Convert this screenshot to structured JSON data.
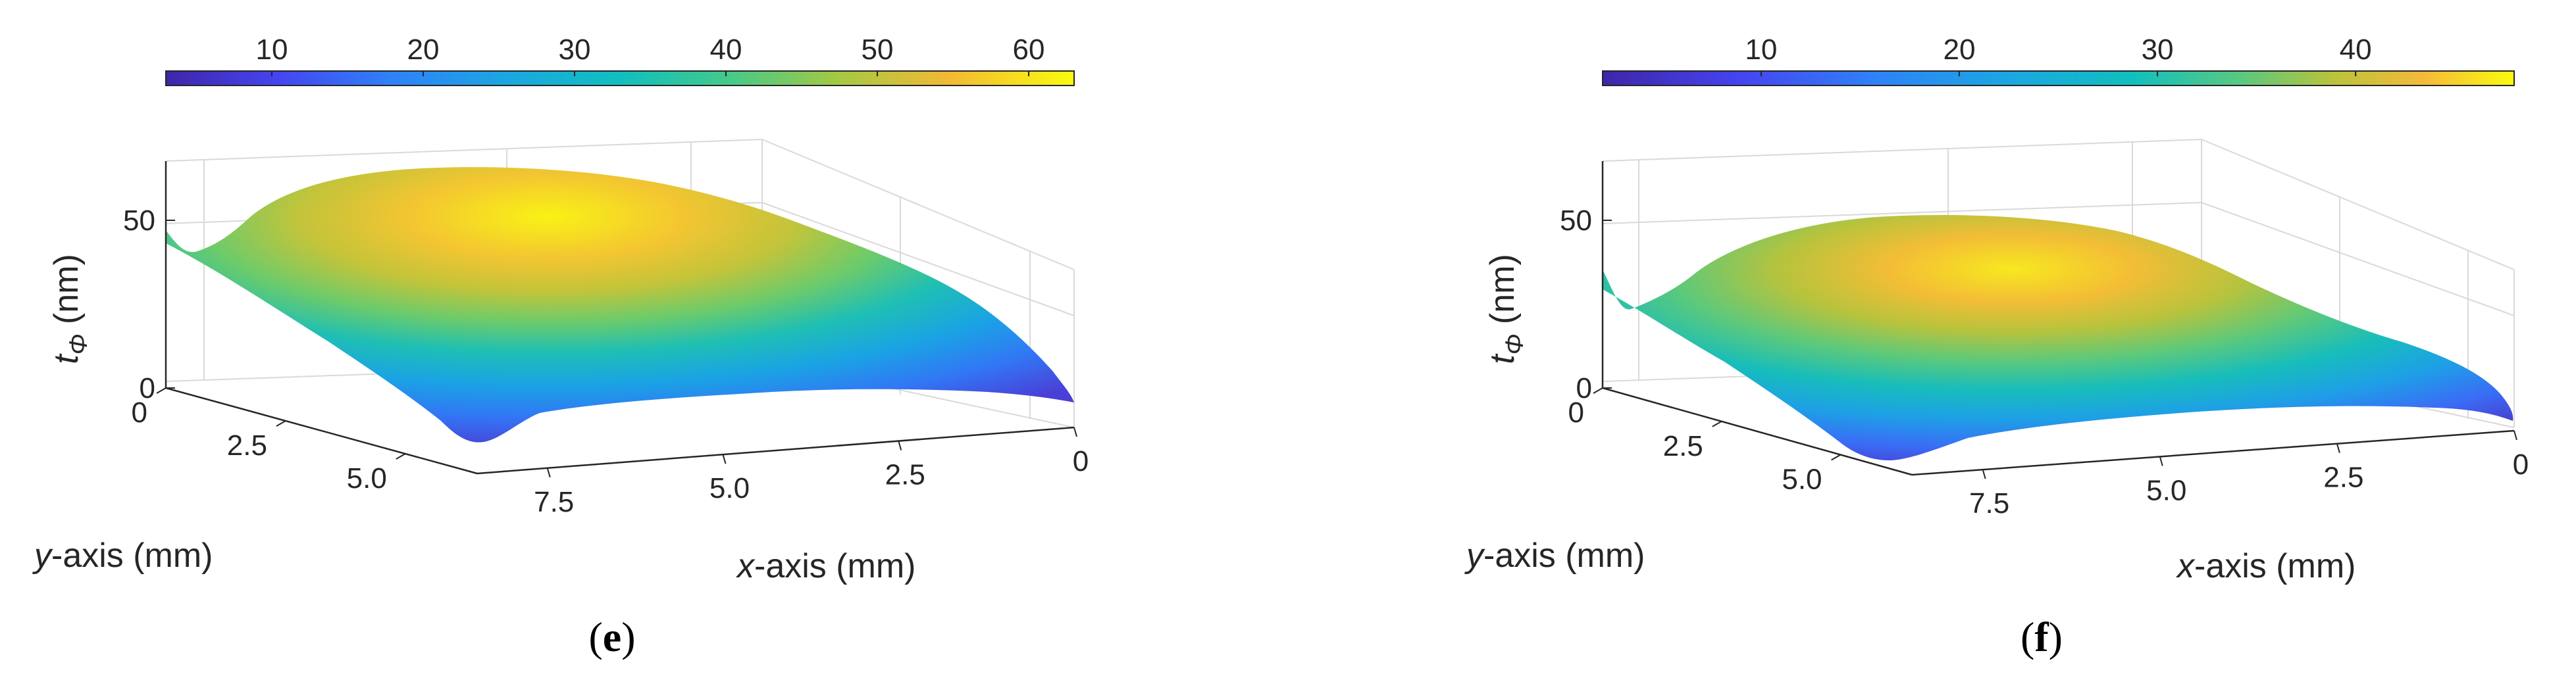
{
  "chart_data": [
    {
      "type": "surface",
      "panel_label": "e",
      "colorbar": {
        "ticks": [
          "10",
          "20",
          "30",
          "40",
          "50",
          "60"
        ],
        "range": [
          3,
          63
        ]
      },
      "zlabel_main": "t",
      "zlabel_sub": "Φ",
      "zlabel_unit": " (nm)",
      "xlabel_main": "x",
      "xlabel_rest": "-axis (mm)",
      "ylabel_main": "y",
      "ylabel_rest": "-axis (mm)",
      "x_ticks": [
        "0",
        "2.5",
        "5.0",
        "7.5"
      ],
      "y_ticks": [
        "0",
        "2.5",
        "5.0"
      ],
      "z_ticks": [
        "0",
        "50"
      ],
      "xlim": [
        0,
        8.5
      ],
      "ylim": [
        0,
        6.5
      ],
      "zlim": [
        0,
        65
      ],
      "grid": true,
      "colormap": "parula",
      "surface_peak": 63
    },
    {
      "type": "surface",
      "panel_label": "f",
      "colorbar": {
        "ticks": [
          "10",
          "20",
          "30",
          "40"
        ],
        "range": [
          2,
          48
        ]
      },
      "zlabel_main": "t",
      "zlabel_sub": "Φ",
      "zlabel_unit": " (nm)",
      "xlabel_main": "x",
      "xlabel_rest": "-axis (mm)",
      "ylabel_main": "y",
      "ylabel_rest": "-axis (mm)",
      "x_ticks": [
        "0",
        "2.5",
        "5.0",
        "7.5"
      ],
      "y_ticks": [
        "0",
        "2.5",
        "5.0"
      ],
      "z_ticks": [
        "0",
        "50"
      ],
      "xlim": [
        0,
        8.5
      ],
      "ylim": [
        0,
        6.5
      ],
      "zlim": [
        0,
        65
      ],
      "grid": true,
      "colormap": "parula",
      "surface_peak": 48
    }
  ]
}
